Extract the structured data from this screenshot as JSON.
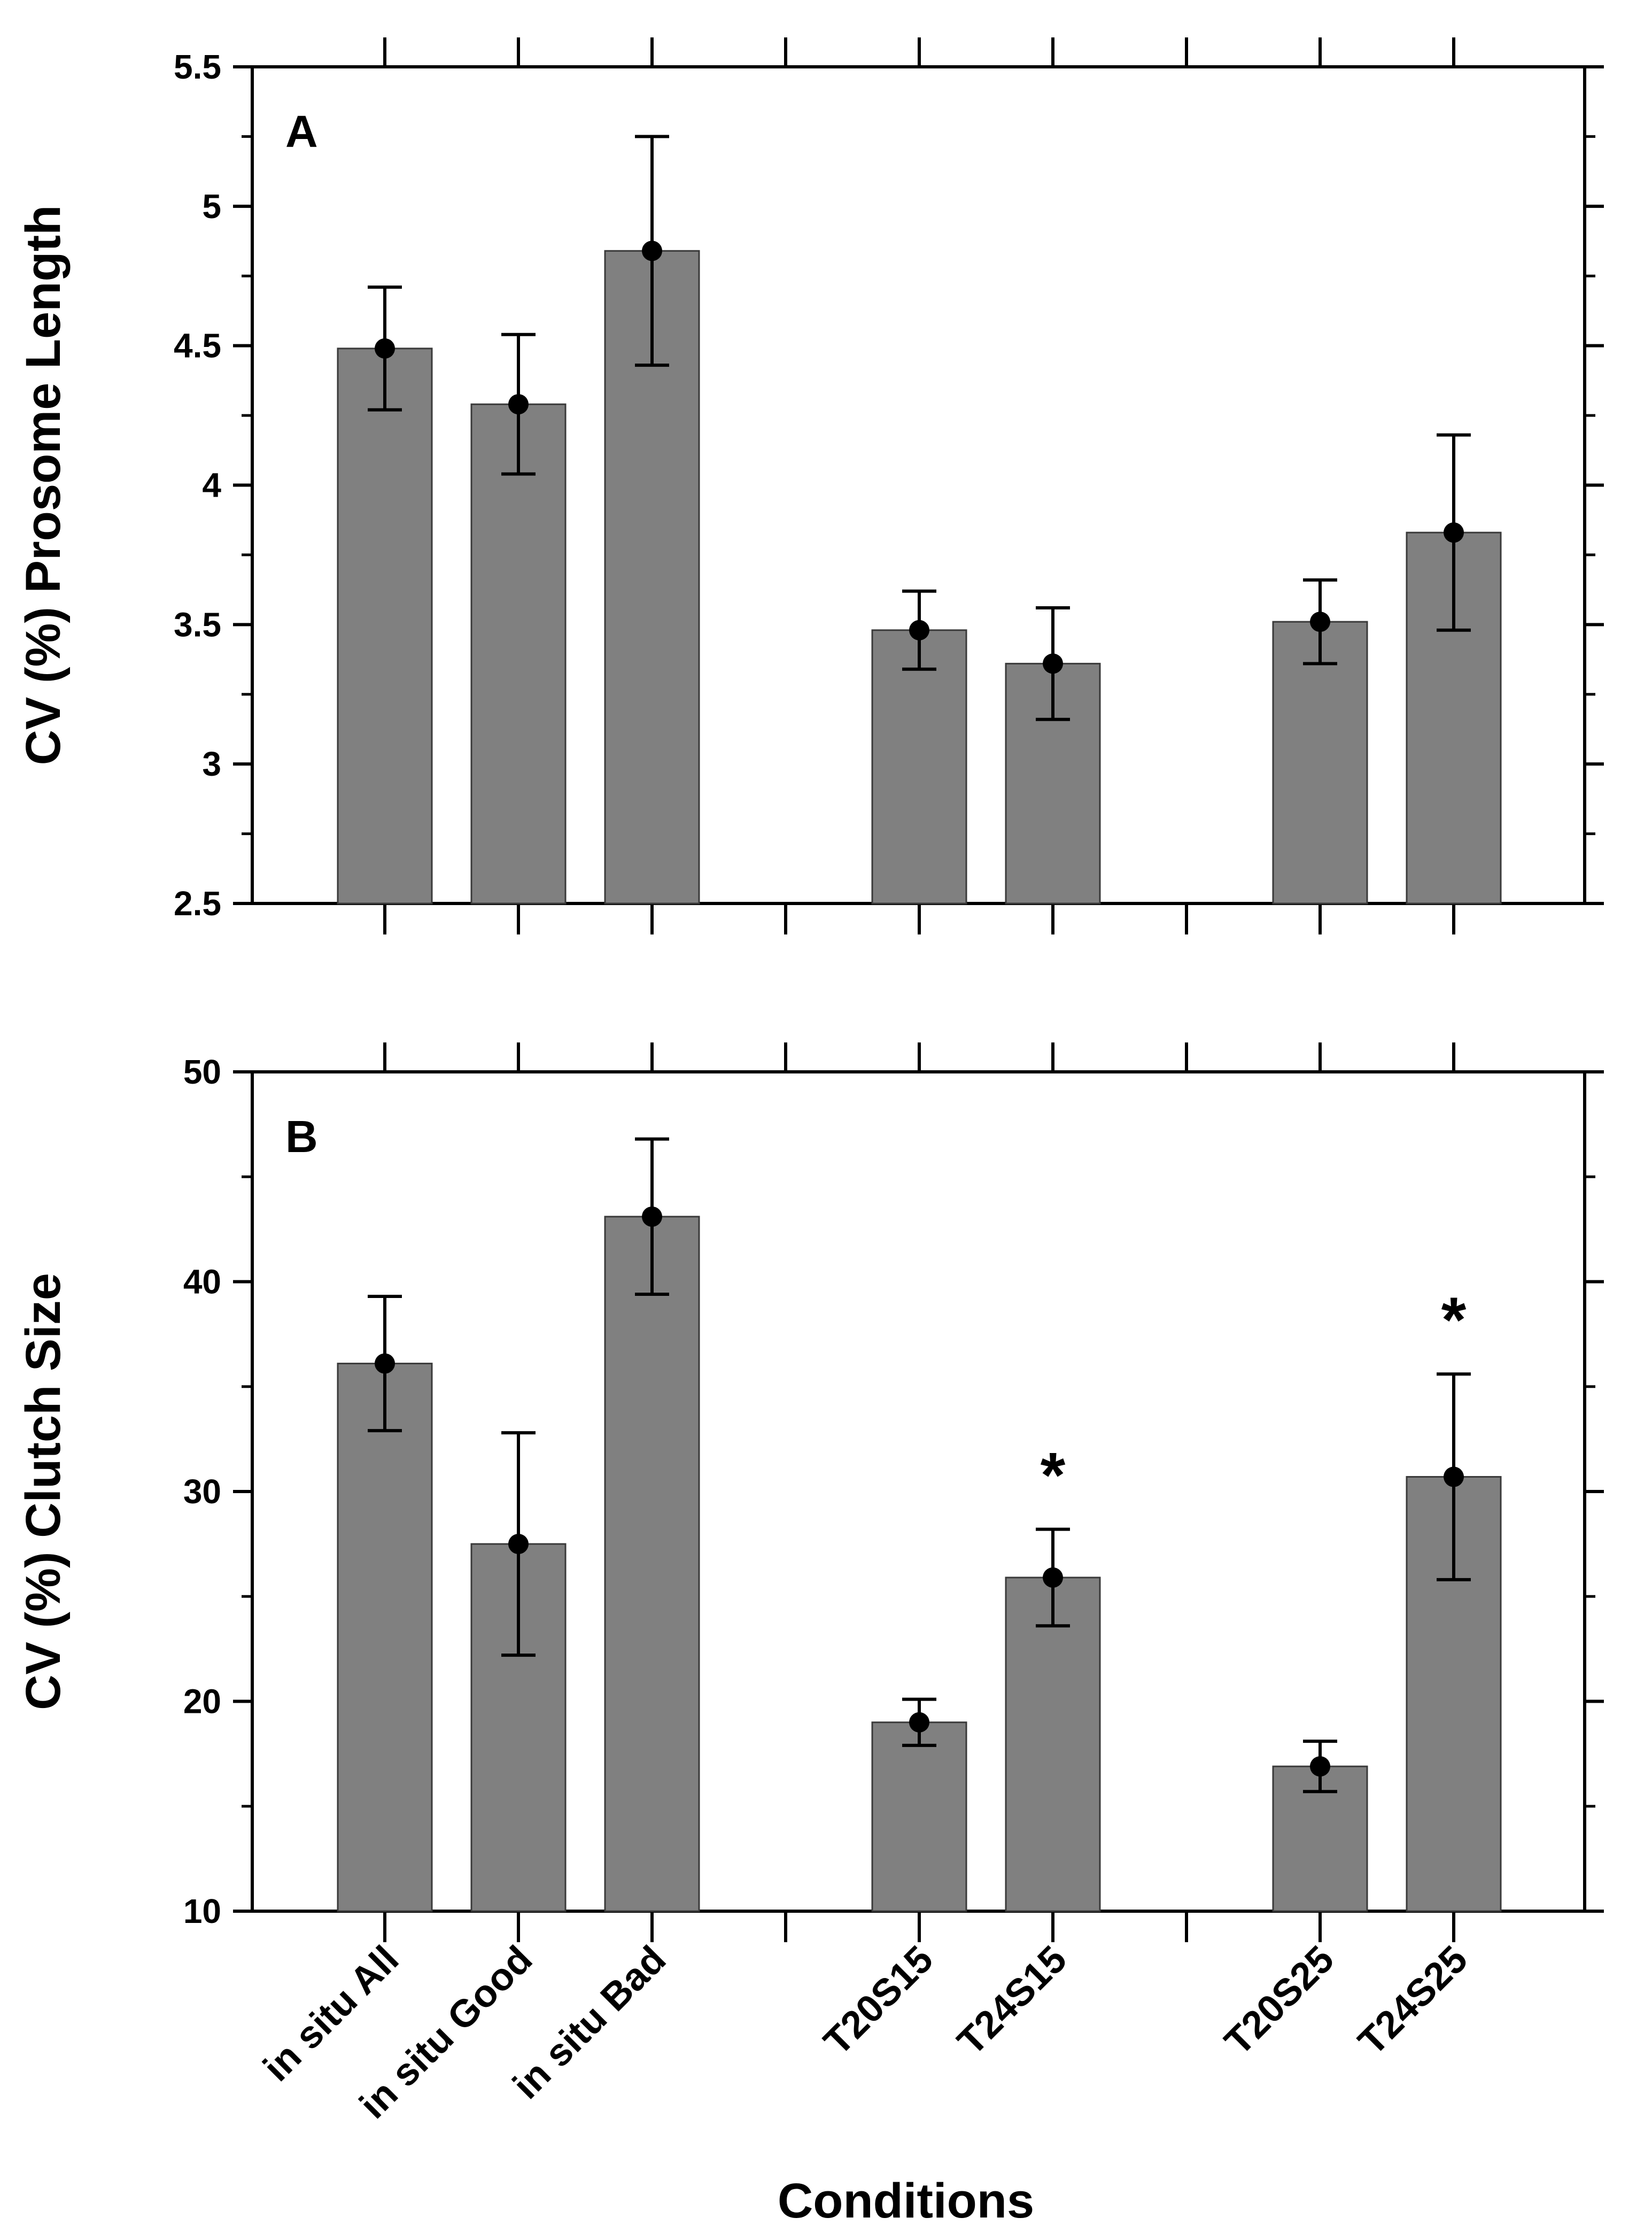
{
  "chart_data": [
    {
      "id": "A",
      "type": "bar",
      "panel_label": "A",
      "ylabel": "CV (%) Prosome Length",
      "ylim": [
        2.5,
        5.5
      ],
      "yticks": [
        "2.5",
        "3",
        "3.5",
        "4",
        "4.5",
        "5",
        "5.5"
      ],
      "categories": [
        "in situ All",
        "in situ Good",
        "in situ Bad",
        "",
        "T20S15",
        "T24S15",
        "",
        "T20S25",
        "T24S25"
      ],
      "values": [
        4.49,
        4.29,
        4.84,
        null,
        3.48,
        3.36,
        null,
        3.51,
        3.83
      ],
      "error": [
        0.22,
        0.25,
        0.41,
        null,
        0.14,
        0.2,
        null,
        0.15,
        0.35
      ],
      "significance": [
        "",
        "",
        "",
        "",
        "",
        "",
        "",
        "",
        ""
      ]
    },
    {
      "id": "B",
      "type": "bar",
      "panel_label": "B",
      "ylabel": "CV (%) Clutch Size",
      "xlabel": "Conditions",
      "ylim": [
        10,
        50
      ],
      "yticks": [
        "10",
        "20",
        "30",
        "40",
        "50"
      ],
      "categories": [
        "in situ All",
        "in situ Good",
        "in situ Bad",
        "",
        "T20S15",
        "T24S15",
        "",
        "T20S25",
        "T24S25"
      ],
      "values": [
        36.1,
        27.5,
        43.1,
        null,
        19.0,
        25.9,
        null,
        16.9,
        30.7
      ],
      "error": [
        3.2,
        5.3,
        3.7,
        null,
        1.1,
        2.3,
        null,
        1.2,
        4.9
      ],
      "significance": [
        "",
        "",
        "",
        "",
        "",
        "*",
        "",
        "",
        "*"
      ]
    }
  ],
  "colors": {
    "bar_fill": "#808080",
    "bar_stroke": "#3a3a3a",
    "axis": "#000000",
    "background": "#ffffff"
  }
}
